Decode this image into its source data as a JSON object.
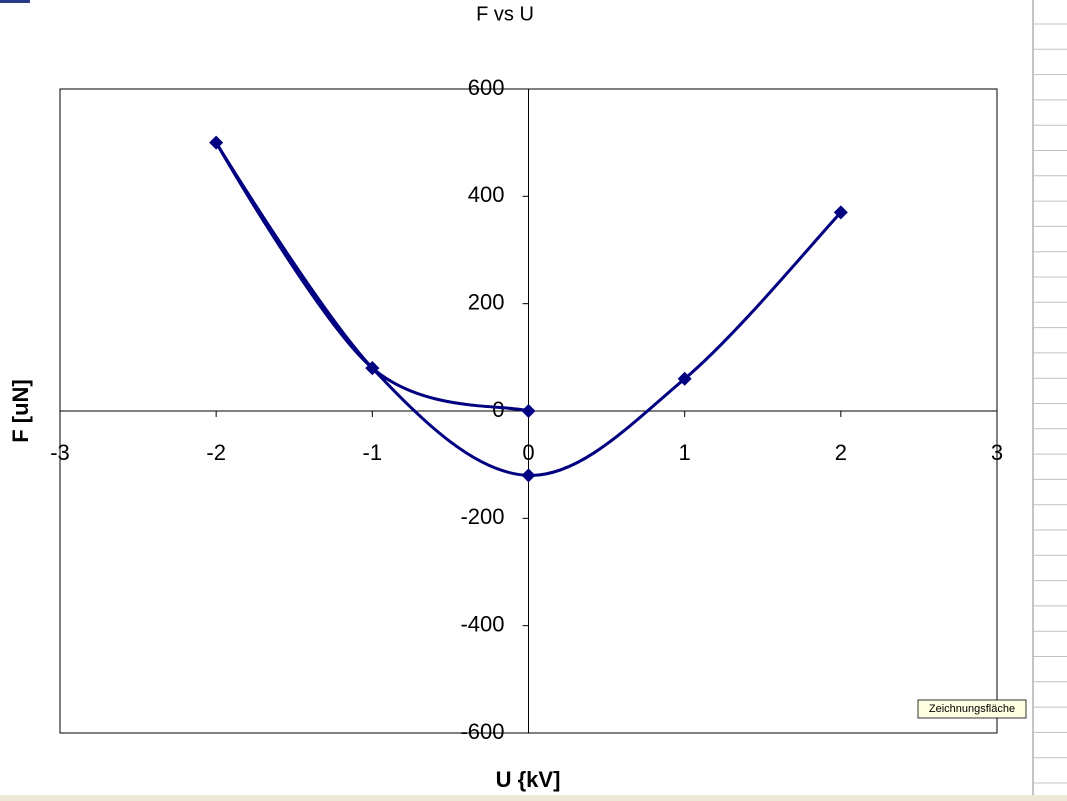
{
  "chart_data": {
    "type": "scatter",
    "title": "F vs U",
    "x_label": "U {kV]",
    "y_label": "F [uN]",
    "x": [
      0,
      -1,
      -2,
      -1,
      0,
      1,
      2
    ],
    "values": [
      0,
      80,
      500,
      80,
      -120,
      60,
      370
    ],
    "color": "#000080",
    "smooth": true,
    "marker": "diamond",
    "xlim": [
      -3,
      3
    ],
    "xticks": [
      -3,
      -2,
      -1,
      0,
      1,
      2,
      3
    ],
    "ylim": [
      -600,
      600
    ],
    "yticks": [
      -600,
      -400,
      -200,
      0,
      200,
      400,
      600
    ],
    "grid": false
  },
  "tooltip": "Zeichnungsfläche"
}
